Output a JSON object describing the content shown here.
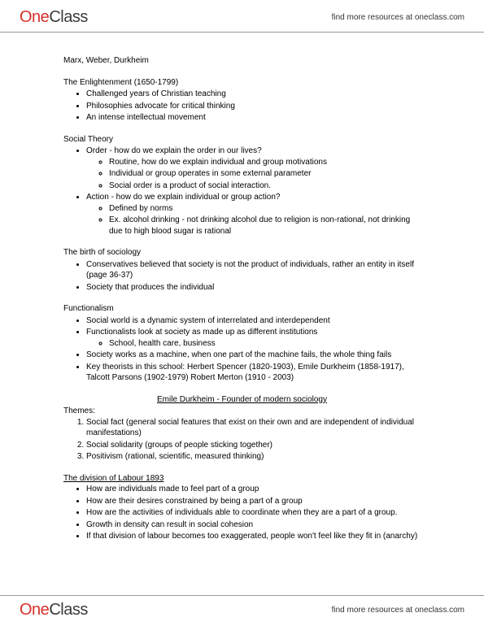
{
  "brand": {
    "one": "One",
    "class": "Class",
    "tagline": "find more resources at oneclass.com"
  },
  "doc_title": "Marx, Weber, Durkheim",
  "sections": [
    {
      "heading": "The Enlightenment (1650-1799)",
      "items": [
        {
          "t": "Challenged years of Christian teaching"
        },
        {
          "t": "Philosophies advocate for critical thinking"
        },
        {
          "t": "An intense intellectual movement"
        }
      ]
    },
    {
      "heading": "Social Theory",
      "items": [
        {
          "t": "Order - how do we explain the order in our lives?",
          "sub": [
            "Routine, how do we explain individual and group motivations",
            "Individual or group operates in some external parameter",
            "Social order is a product of social interaction."
          ]
        },
        {
          "t": "Action - how do we explain individual or group action?",
          "sub": [
            "Defined by norms",
            "Ex. alcohol drinking - not drinking alcohol due to religion is non-rational, not drinking due to high blood sugar is rational"
          ]
        }
      ]
    },
    {
      "heading": "The birth of sociology",
      "items": [
        {
          "t": "Conservatives believed that society is not the product of individuals, rather an entity in itself (page 36-37)"
        },
        {
          "t": "Society that produces the individual"
        }
      ]
    },
    {
      "heading": "Functionalism",
      "items": [
        {
          "t": "Social world is a dynamic system of interrelated and interdependent"
        },
        {
          "t": "Functionalists look at society as made up as different institutions",
          "sub": [
            "School, health care, business"
          ]
        },
        {
          "t": "Society works as a machine, when one part of the machine fails, the whole thing fails"
        },
        {
          "t": "Key theorists in this school: Herbert Spencer (1820-1903), Emile Durkheim (1858-1917), Talcott Parsons (1902-1979) Robert Merton (1910 - 2003)"
        }
      ]
    }
  ],
  "durkheim": {
    "title": "Emile Durkheim - Founder of modern sociology",
    "themes_label": "Themes:",
    "themes": [
      "Social fact (general social features that exist on their own and are independent of individual manifestations)",
      "Social solidarity (groups of people sticking together)",
      "Positivism (rational, scientific, measured thinking)"
    ]
  },
  "division": {
    "heading": "The division of Labour 1893",
    "items": [
      "How are individuals made to feel part of a group",
      "How are their desires constrained by being a part of a group",
      "How are the activities of individuals able to coordinate when they are a part of a group.",
      "Growth in density can result in social cohesion",
      "If that division of labour becomes too exaggerated, people won't feel like they fit in (anarchy)"
    ]
  }
}
